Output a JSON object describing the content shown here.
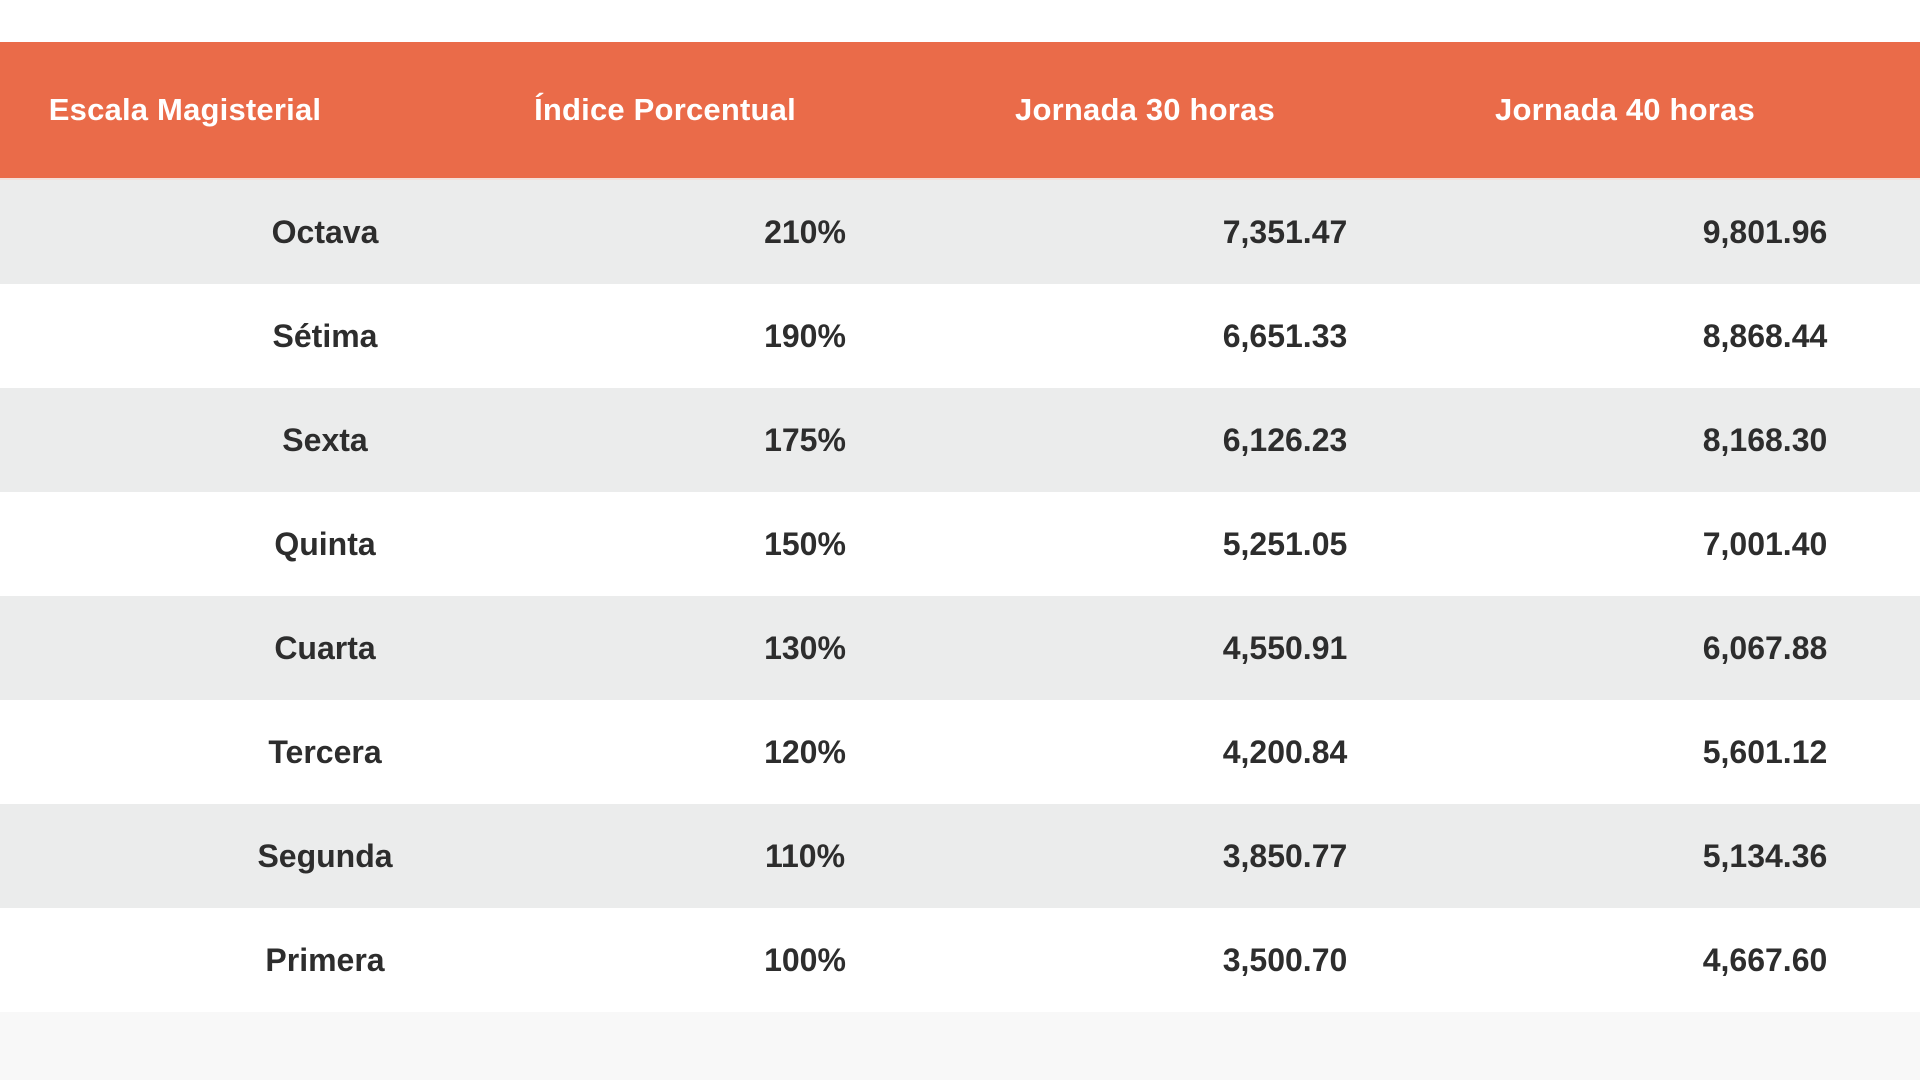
{
  "chart_data": {
    "type": "table",
    "columns": [
      "Escala Magisterial",
      "Índice Porcentual",
      "Jornada 30 horas",
      "Jornada 40 horas"
    ],
    "rows": [
      [
        "Octava",
        "210%",
        "7,351.47",
        "9,801.96"
      ],
      [
        "Sétima",
        "190%",
        "6,651.33",
        "8,868.44"
      ],
      [
        "Sexta",
        "175%",
        "6,126.23",
        "8,168.30"
      ],
      [
        "Quinta",
        "150%",
        "5,251.05",
        "7,001.40"
      ],
      [
        "Cuarta",
        "130%",
        "4,550.91",
        "6,067.88"
      ],
      [
        "Tercera",
        "120%",
        "4,200.84",
        "5,601.12"
      ],
      [
        "Segunda",
        "110%",
        "3,850.77",
        "5,134.36"
      ],
      [
        "Primera",
        "100%",
        "3,500.70",
        "4,667.60"
      ]
    ]
  },
  "colors": {
    "header_bg": "#EA6B49",
    "header_text": "#FFFFFF",
    "row_bg": "#FFFFFF",
    "row_alt_bg": "#EBECEC",
    "body_text": "#2D2D2D",
    "footer_bg": "#F8F8F8"
  }
}
